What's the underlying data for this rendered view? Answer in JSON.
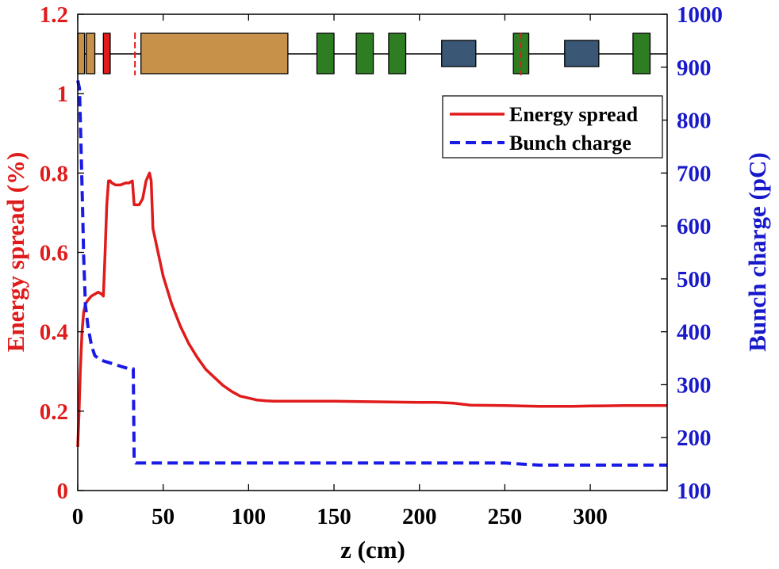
{
  "colors": {
    "left_axis": "#e01b1b",
    "right_axis": "#1919cc",
    "energy_line": "#e01b1b",
    "charge_line": "#1a1ae6",
    "frame": "#000000",
    "beamline": "#000000",
    "element_tan": "#c8914a",
    "element_red": "#e01b1b",
    "element_green": "#2e7d22",
    "element_slate": "#3a5775"
  },
  "chart_data": {
    "type": "line",
    "title": "",
    "xlabel": "z (cm)",
    "ylabel_left": "Energy spread (%)",
    "ylabel_right": "Bunch charge (pC)",
    "xlim": [
      0,
      345
    ],
    "ylim_left": [
      0,
      1.2
    ],
    "ylim_right": [
      100,
      1000
    ],
    "x_ticks": [
      0,
      50,
      100,
      150,
      200,
      250,
      300
    ],
    "x_tick_labels": [
      "0",
      "50",
      "100",
      "150",
      "200",
      "250",
      "300"
    ],
    "left_ticks": [
      0,
      0.2,
      0.4,
      0.6,
      0.8,
      1,
      1.2
    ],
    "left_tick_labels": [
      "0",
      "0.2",
      "0.4",
      "0.6",
      "0.8",
      "1",
      "1.2"
    ],
    "right_ticks": [
      100,
      200,
      300,
      400,
      500,
      600,
      700,
      800,
      900,
      1000
    ],
    "right_tick_labels": [
      "100",
      "200",
      "300",
      "400",
      "500",
      "600",
      "700",
      "800",
      "900",
      "1000"
    ],
    "legend": {
      "position": "top-right",
      "entries": [
        "Energy spread",
        "Bunch charge"
      ]
    },
    "series": [
      {
        "name": "Energy spread",
        "axis": "left",
        "style": "solid",
        "x": [
          0,
          0.8,
          1.5,
          2.5,
          3.5,
          4.5,
          6,
          8,
          10,
          12,
          14,
          15,
          16,
          17,
          18,
          19,
          20,
          22,
          25,
          28,
          30,
          32,
          33,
          34,
          36,
          38,
          40,
          42,
          43,
          44,
          46,
          50,
          55,
          60,
          65,
          70,
          75,
          80,
          85,
          90,
          95,
          100,
          105,
          110,
          115,
          120,
          125,
          130,
          150,
          200,
          210,
          220,
          230,
          250,
          270,
          290,
          300,
          320,
          345
        ],
        "y": [
          0.11,
          0.2,
          0.3,
          0.4,
          0.45,
          0.47,
          0.48,
          0.49,
          0.495,
          0.5,
          0.495,
          0.49,
          0.6,
          0.72,
          0.78,
          0.78,
          0.775,
          0.77,
          0.77,
          0.775,
          0.775,
          0.78,
          0.72,
          0.72,
          0.72,
          0.735,
          0.78,
          0.8,
          0.78,
          0.66,
          0.62,
          0.54,
          0.47,
          0.415,
          0.37,
          0.335,
          0.305,
          0.285,
          0.265,
          0.25,
          0.238,
          0.233,
          0.228,
          0.226,
          0.225,
          0.225,
          0.225,
          0.225,
          0.225,
          0.222,
          0.222,
          0.22,
          0.215,
          0.214,
          0.212,
          0.212,
          0.213,
          0.214,
          0.214
        ]
      },
      {
        "name": "Bunch charge",
        "axis": "right",
        "style": "dashed",
        "x": [
          0,
          1,
          2,
          2.8,
          3.5,
          4.5,
          6,
          8,
          10,
          12,
          15,
          20,
          25,
          30,
          32.5,
          33,
          34,
          50,
          100,
          150,
          200,
          250,
          260,
          270,
          300,
          345
        ],
        "y": [
          875,
          860,
          740,
          640,
          540,
          450,
          410,
          375,
          355,
          350,
          345,
          340,
          335,
          330,
          330,
          160,
          152,
          152,
          152,
          152,
          152,
          152,
          150,
          148,
          148,
          148
        ]
      }
    ],
    "beamline_elements": [
      {
        "kind": "tan",
        "z_start": 0,
        "z_end": 4
      },
      {
        "kind": "tan",
        "z_start": 5,
        "z_end": 10
      },
      {
        "kind": "red",
        "z_start": 15,
        "z_end": 19
      },
      {
        "kind": "red-thin",
        "z_start": 33.5,
        "z_end": 34
      },
      {
        "kind": "tan",
        "z_start": 37,
        "z_end": 123
      },
      {
        "kind": "green",
        "z_start": 140,
        "z_end": 150
      },
      {
        "kind": "green",
        "z_start": 163,
        "z_end": 173
      },
      {
        "kind": "green",
        "z_start": 182,
        "z_end": 192
      },
      {
        "kind": "slate",
        "z_start": 213,
        "z_end": 233
      },
      {
        "kind": "green",
        "z_start": 255,
        "z_end": 264
      },
      {
        "kind": "red-thin",
        "z_start": 259.5,
        "z_end": 260
      },
      {
        "kind": "slate",
        "z_start": 285,
        "z_end": 305
      },
      {
        "kind": "green",
        "z_start": 325,
        "z_end": 335
      }
    ]
  }
}
